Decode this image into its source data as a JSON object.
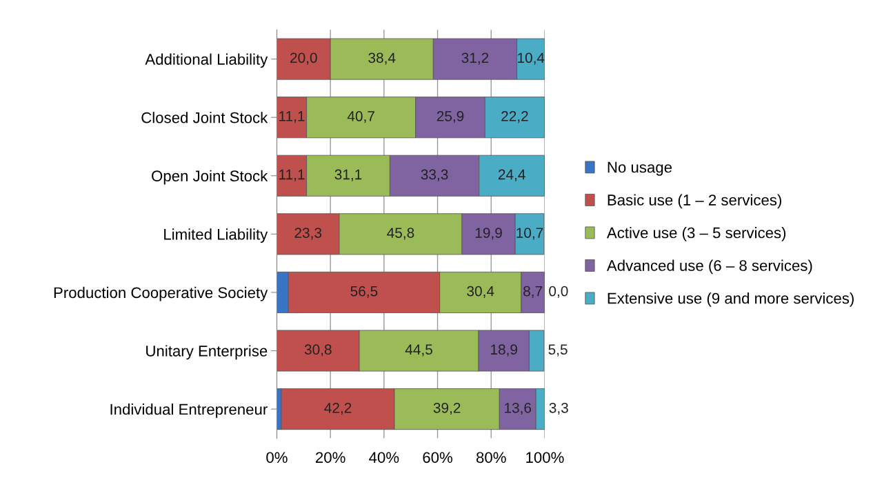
{
  "chart_data": {
    "type": "bar",
    "orientation": "horizontal",
    "stacked": true,
    "categories": [
      "Additional Liability",
      "Closed Joint Stock",
      "Open Joint Stock",
      "Limited Liability",
      "Production Cooperative Society",
      "Unitary Enterprise",
      "Individual Entrepreneur"
    ],
    "series": [
      {
        "name": "No usage",
        "color": "#3a74c4",
        "values": [
          null,
          null,
          null,
          null,
          4.3,
          null,
          1.7
        ],
        "value_labels": [
          null,
          null,
          null,
          null,
          null,
          null,
          null
        ]
      },
      {
        "name": "Basic use (1 – 2 services)",
        "color": "#c0504d",
        "values": [
          20.0,
          11.1,
          11.1,
          23.3,
          56.5,
          30.8,
          42.2
        ],
        "value_labels": [
          "20,0",
          "11,1",
          "11,1",
          "23,3",
          "56,5",
          "30,8",
          "42,2"
        ]
      },
      {
        "name": "Active use (3 – 5 services)",
        "color": "#9bbb59",
        "values": [
          38.4,
          40.7,
          31.1,
          45.8,
          30.4,
          44.5,
          39.2
        ],
        "value_labels": [
          "38,4",
          "40,7",
          "31,1",
          "45,8",
          "30,4",
          "44,5",
          "39,2"
        ]
      },
      {
        "name": "Advanced use (6 – 8 services)",
        "color": "#8064a2",
        "values": [
          31.2,
          25.9,
          33.3,
          19.9,
          8.7,
          18.9,
          13.6
        ],
        "value_labels": [
          "31,2",
          "25,9",
          "33,3",
          "19,9",
          "8,7",
          "18,9",
          "13,6"
        ]
      },
      {
        "name": "Extensive use (9 and more services)",
        "color": "#4bacc6",
        "values": [
          10.4,
          22.2,
          24.4,
          10.7,
          0.0,
          5.5,
          3.3
        ],
        "value_labels": [
          "10,4",
          "22,2",
          "24,4",
          "10,7",
          "0,0",
          "5,5",
          "3,3"
        ]
      }
    ],
    "xlim": [
      0,
      100
    ],
    "xticks": [
      {
        "value": 0,
        "label": "0%"
      },
      {
        "value": 20,
        "label": "20%"
      },
      {
        "value": 40,
        "label": "40%"
      },
      {
        "value": 60,
        "label": "60%"
      },
      {
        "value": 80,
        "label": "80%"
      },
      {
        "value": 100,
        "label": "100%"
      }
    ],
    "grid": "x",
    "legend": "right"
  }
}
